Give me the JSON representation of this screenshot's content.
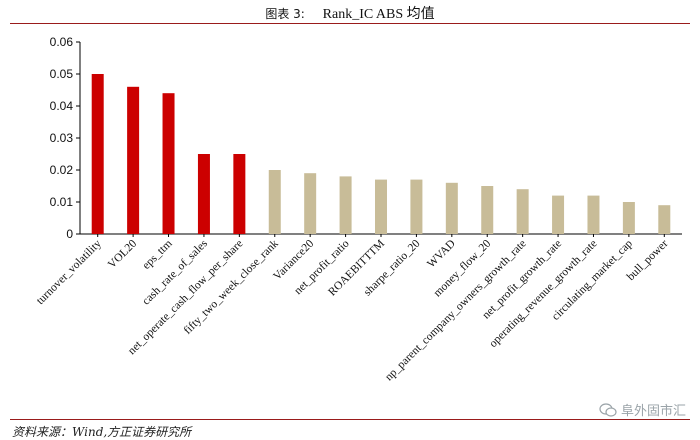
{
  "header": {
    "title_prefix": "图表 3:",
    "title_text": "Rank_IC ABS 均值"
  },
  "footer": {
    "source": "资料来源：Wind,方正证券研究所"
  },
  "watermark": {
    "text": "阜外固市汇",
    "icon": "wechat-icon"
  },
  "colors": {
    "highlight": "#cc0000",
    "normal": "#c8bc98",
    "rule": "#9a1b1b"
  },
  "chart_data": {
    "type": "bar",
    "title": "Rank_IC ABS 均值",
    "xlabel": "",
    "ylabel": "",
    "ylim": [
      0,
      0.06
    ],
    "yticks": [
      "0",
      "0.01",
      "0.02",
      "0.03",
      "0.04",
      "0.05",
      "0.06"
    ],
    "grid": false,
    "categories": [
      "turnover_volatility",
      "VOL20",
      "eps_ttm",
      "cash_rate_of_sales",
      "net_operate_cash_flow_per_share",
      "fifty_two_week_close_rank",
      "Variance20",
      "net_profit_ratio",
      "ROAEBITTTM",
      "sharpe_ratio_20",
      "WVAD",
      "money_flow_20",
      "np_parent_company_owners_growth_rate",
      "net_profit_growth_rate",
      "operating_revenue_growth_rate",
      "circulating_market_cap",
      "bull_power"
    ],
    "values": [
      0.05,
      0.046,
      0.044,
      0.025,
      0.025,
      0.02,
      0.019,
      0.018,
      0.017,
      0.017,
      0.016,
      0.015,
      0.014,
      0.012,
      0.012,
      0.01,
      0.009
    ],
    "highlighted": [
      true,
      true,
      true,
      true,
      true,
      false,
      false,
      false,
      false,
      false,
      false,
      false,
      false,
      false,
      false,
      false,
      false
    ]
  }
}
